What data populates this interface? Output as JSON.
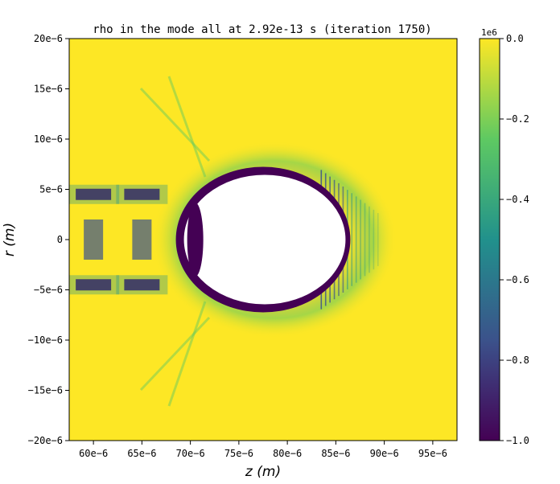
{
  "chart_data": {
    "type": "heatmap",
    "title": "rho in the mode all at 2.92e-13 s   (iteration 1750)",
    "xlabel": "z (m)",
    "ylabel": "r (m)",
    "xlim": [
      5.75e-05,
      9.75e-05
    ],
    "ylim": [
      -2e-05,
      2e-05
    ],
    "x_ticks": [
      6e-05,
      6.5e-05,
      7e-05,
      7.5e-05,
      8e-05,
      8.5e-05,
      9e-05,
      9.5e-05
    ],
    "x_tick_labels": [
      "60e−6",
      "65e−6",
      "70e−6",
      "75e−6",
      "80e−6",
      "85e−6",
      "90e−6",
      "95e−6"
    ],
    "y_ticks": [
      2e-05,
      1.5e-05,
      1e-05,
      5e-06,
      0,
      -5e-06,
      -1e-05,
      -1.5e-05,
      -2e-05
    ],
    "y_tick_labels": [
      "20e−6",
      "15e−6",
      "10e−6",
      "5e−6",
      "0",
      "−5e−6",
      "−10e−6",
      "−15e−6",
      "−20e−6"
    ],
    "colorbar": {
      "offset_label": "1e6",
      "range": [
        -1.0,
        0.0
      ],
      "ticks": [
        0.0,
        -0.2,
        -0.4,
        -0.6,
        -0.8,
        -1.0
      ],
      "tick_labels": [
        "0.0",
        "−0.2",
        "−0.4",
        "−0.6",
        "−0.8",
        "−1.0"
      ],
      "colormap": "viridis"
    },
    "features": {
      "bubble_center_z": 7.75e-05,
      "bubble_radius_z": 8.5e-06,
      "bubble_radius_r": 6.6e-06,
      "bubble_rear_z": 7.05e-05,
      "electron_clusters_z": [
        6e-05,
        6.5e-05
      ],
      "electron_cluster_r": 4.5e-06
    },
    "background_value": 0.0,
    "min_value": -1.0
  },
  "colors": {
    "viridis_stops": [
      "#440154",
      "#3b528b",
      "#21918c",
      "#5ec962",
      "#fde725"
    ],
    "background": "#fde725",
    "frame": "#000000"
  }
}
